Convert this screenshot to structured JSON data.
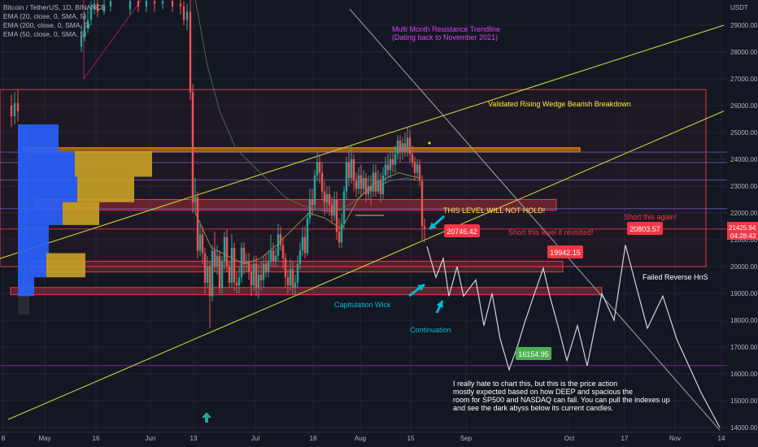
{
  "header": {
    "symbol_line": "Bitcoin / TetherUS, 1D, BINANCE",
    "indicators": [
      "EMA (20, close, 0, SMA, 5)",
      "EMA (200, close, 0, SMA, 5)",
      "EMA (50, close, 0, SMA, 5)"
    ]
  },
  "price_axis": {
    "currency": "USDT",
    "current_price": "21425.94",
    "countdown": "04:28:43"
  },
  "annotations": {
    "resistance_title": "Multi Month Resistance Trendline",
    "resistance_sub": "(Dating back to November 2021)",
    "wedge": "Validated Rising Wedge Bearish Breakdown",
    "not_hold": "THIS LEVEL WILL NOT HOLD!",
    "short_revisit": "Short this level if revisited!",
    "short_again": "Short this again!",
    "failed_hns": "Failed Reverse HnS",
    "cap_wick": "Capitulation Wick",
    "continuation": "Continuation",
    "commentary": [
      "I really hate to chart this, but this is the price action",
      "mostly expected based on how DEEP and spacious the",
      "room for SP500 and NASDAQ can fall. You can pull the indexes up",
      "and see the dark abyss below its current candles."
    ]
  },
  "chart_data": {
    "type": "line",
    "title": "",
    "xlabel": "",
    "ylabel": "",
    "x_ticks": [
      "8",
      "May",
      "16",
      "Jun",
      "13",
      "Jul",
      "18",
      "Aug",
      "15",
      "Sep",
      "Oct",
      "17",
      "Nov",
      "14"
    ],
    "y_ticks": [
      14000,
      15000,
      16000,
      17000,
      18000,
      19000,
      20000,
      21000,
      22000,
      23000,
      24000,
      25000,
      26000,
      27000,
      28000,
      29000
    ],
    "ylim": [
      13800,
      30200
    ],
    "price_labels": [
      {
        "value": "20746.42",
        "color": "#f23645"
      },
      {
        "value": "19942.15",
        "color": "#f23645"
      },
      {
        "value": "20803.57",
        "color": "#f23645"
      },
      {
        "value": "16154.95",
        "color": "#4caf50"
      }
    ],
    "projection_path": [
      [
        525,
        20750
      ],
      [
        536,
        19600
      ],
      [
        545,
        20300
      ],
      [
        552,
        18900
      ],
      [
        562,
        20000
      ],
      [
        570,
        18900
      ],
      [
        585,
        19500
      ],
      [
        595,
        17800
      ],
      [
        605,
        19000
      ],
      [
        615,
        17300
      ],
      [
        626,
        16155
      ],
      [
        636,
        17000
      ],
      [
        645,
        17900
      ],
      [
        655,
        18800
      ],
      [
        668,
        19942
      ],
      [
        676,
        18900
      ],
      [
        686,
        17800
      ],
      [
        697,
        16500
      ],
      [
        710,
        17800
      ],
      [
        722,
        16300
      ],
      [
        740,
        19000
      ],
      [
        755,
        18000
      ],
      [
        769,
        20804
      ],
      [
        782,
        19300
      ],
      [
        796,
        17700
      ],
      [
        815,
        18900
      ],
      [
        832,
        17300
      ],
      [
        862,
        15300
      ],
      [
        885,
        14000
      ]
    ],
    "resistance_trendline": [
      [
        430,
        29600
      ],
      [
        885,
        13900
      ]
    ],
    "wedge_upper": [
      [
        0,
        20300
      ],
      [
        890,
        29000
      ]
    ],
    "wedge_lower": [
      [
        10,
        14300
      ],
      [
        890,
        25800
      ]
    ],
    "zones": [
      {
        "y0": 20000,
        "y1": 26600,
        "x0": 0,
        "x1": 868,
        "fill": "rgba(242,54,69,0.05)",
        "stroke": "#f23645"
      },
      {
        "y0": 24270,
        "y1": 24430,
        "x0": 30,
        "x1": 713,
        "fill": "rgba(255,152,0,0.55)",
        "stroke": "#ff9800"
      },
      {
        "y0": 22100,
        "y1": 22500,
        "x0": 43,
        "x1": 684,
        "fill": "rgba(242,54,69,0.35)",
        "stroke": "#f23645"
      },
      {
        "y0": 19800,
        "y1": 20200,
        "x0": 38,
        "x1": 692,
        "fill": "rgba(242,54,69,0.25)",
        "stroke": "#f23645"
      },
      {
        "y0": 18950,
        "y1": 19220,
        "x0": 13,
        "x1": 740,
        "fill": "rgba(242,54,69,0.35)",
        "stroke": "#f23645"
      }
    ],
    "horizontal_lines": [
      {
        "value": 24270,
        "color": "#7e57c2"
      },
      {
        "value": 23880,
        "color": "#7e57c2"
      },
      {
        "value": 23230,
        "color": "#7e57c2"
      },
      {
        "value": 22160,
        "color": "#7e57c2"
      },
      {
        "value": 21400,
        "color": "#f23645"
      },
      {
        "value": 16310,
        "color": "#9c27b0"
      }
    ],
    "volume_profile": [
      {
        "bottom": 24300,
        "top": 25300,
        "blue": 50,
        "yellow": 0
      },
      {
        "bottom": 23350,
        "top": 24300,
        "blue": 70,
        "yellow": 95
      },
      {
        "bottom": 22400,
        "top": 23350,
        "blue": 73,
        "yellow": 70
      },
      {
        "bottom": 21550,
        "top": 22400,
        "blue": 55,
        "yellow": 45
      },
      {
        "bottom": 20500,
        "top": 21550,
        "blue": 38,
        "yellow": 0
      },
      {
        "bottom": 19600,
        "top": 20500,
        "blue": 35,
        "yellow": 48
      },
      {
        "bottom": 18900,
        "top": 19600,
        "blue": 20,
        "yellow": 0
      }
    ],
    "ema_50": [
      [
        240,
        30000
      ],
      [
        255,
        27500
      ],
      [
        270,
        25800
      ],
      [
        290,
        24400
      ],
      [
        310,
        23800
      ],
      [
        330,
        23200
      ],
      [
        350,
        22600
      ],
      [
        370,
        22300
      ],
      [
        390,
        22100
      ],
      [
        410,
        22050
      ],
      [
        430,
        22300
      ],
      [
        450,
        22800
      ],
      [
        480,
        23200
      ],
      [
        500,
        23300
      ],
      [
        515,
        23200
      ]
    ],
    "ema_20": [
      [
        240,
        22000
      ],
      [
        260,
        20700
      ],
      [
        280,
        20400
      ],
      [
        300,
        20100
      ],
      [
        320,
        20300
      ],
      [
        340,
        20800
      ],
      [
        360,
        21400
      ],
      [
        380,
        22000
      ],
      [
        400,
        21800
      ],
      [
        420,
        21400
      ],
      [
        440,
        22500
      ],
      [
        460,
        23100
      ],
      [
        490,
        23500
      ],
      [
        515,
        23300
      ]
    ],
    "ema_200_pre_may": [
      [
        60,
        28000
      ],
      [
        100,
        27000
      ],
      [
        120,
        28500
      ]
    ],
    "ema_200_upper": [
      [
        250,
        30000
      ],
      [
        240,
        30000
      ]
    ],
    "may_range_line": [
      [
        103,
        27000
      ],
      [
        175,
        30000
      ]
    ],
    "candles": [
      [
        14,
        26000,
        25600,
        26400,
        25200
      ],
      [
        18,
        25600,
        26100,
        26500,
        25300
      ],
      [
        22,
        26100,
        25800,
        26600,
        25400
      ],
      [
        100,
        28200,
        28600,
        29000,
        28000
      ],
      [
        104,
        28600,
        28900,
        29500,
        28400
      ],
      [
        108,
        28900,
        29200,
        29600,
        28700
      ],
      [
        112,
        29200,
        29600,
        29900,
        29000
      ],
      [
        116,
        29600,
        29800,
        30000,
        29400
      ],
      [
        120,
        29800,
        29500,
        30000,
        29300
      ],
      [
        128,
        29500,
        29700,
        30000,
        29400
      ],
      [
        136,
        29700,
        29900,
        30000,
        29500
      ],
      [
        160,
        29600,
        29900,
        30000,
        29400
      ],
      [
        170,
        29900,
        29700,
        30000,
        29500
      ],
      [
        180,
        29700,
        29900,
        30000,
        29500
      ],
      [
        190,
        29900,
        29800,
        30000,
        29500
      ],
      [
        200,
        29800,
        29900,
        30000,
        29600
      ],
      [
        212,
        29900,
        29700,
        30000,
        29500
      ],
      [
        222,
        29800,
        29700,
        30000,
        29400
      ],
      [
        226,
        29700,
        29200,
        29900,
        29000
      ],
      [
        230,
        29200,
        29500,
        29800,
        28800
      ],
      [
        234,
        29500,
        26500,
        30000,
        26200
      ],
      [
        237,
        26500,
        22400,
        26800,
        22000
      ],
      [
        240,
        22400,
        22600,
        23300,
        22000
      ],
      [
        243,
        22600,
        20600,
        22800,
        20300
      ],
      [
        246,
        20600,
        21200,
        21700,
        20400
      ],
      [
        249,
        21200,
        20500,
        21500,
        20100
      ],
      [
        252,
        20500,
        19400,
        20700,
        19000
      ],
      [
        255,
        19400,
        20000,
        20400,
        19200
      ],
      [
        258,
        20000,
        18900,
        20200,
        17700
      ],
      [
        261,
        18900,
        20600,
        20800,
        18700
      ],
      [
        264,
        20600,
        20000,
        21300,
        19800
      ],
      [
        267,
        20000,
        20400,
        20800,
        19700
      ],
      [
        270,
        20400,
        19200,
        20600,
        19000
      ],
      [
        273,
        19200,
        20200,
        20400,
        19000
      ],
      [
        276,
        20200,
        21100,
        21300,
        19900
      ],
      [
        279,
        21100,
        20000,
        21400,
        19800
      ],
      [
        282,
        20000,
        19400,
        20200,
        19200
      ],
      [
        285,
        19400,
        20700,
        21200,
        19200
      ],
      [
        288,
        20700,
        19400,
        20900,
        19100
      ],
      [
        291,
        19400,
        19300,
        19800,
        19000
      ],
      [
        294,
        19300,
        19600,
        20000,
        19000
      ],
      [
        297,
        19600,
        20700,
        20900,
        19400
      ],
      [
        300,
        20700,
        20100,
        20900,
        19700
      ],
      [
        303,
        20100,
        20200,
        20500,
        19800
      ],
      [
        306,
        20200,
        19800,
        20500,
        19500
      ],
      [
        309,
        19800,
        19300,
        20100,
        18900
      ],
      [
        312,
        19300,
        20100,
        20400,
        19100
      ],
      [
        315,
        20100,
        19200,
        20400,
        18900
      ],
      [
        318,
        19200,
        19700,
        20100,
        18800
      ],
      [
        321,
        19700,
        19500,
        20200,
        19100
      ],
      [
        324,
        19500,
        20100,
        20400,
        19200
      ],
      [
        327,
        20100,
        19800,
        20500,
        19600
      ],
      [
        330,
        19800,
        20200,
        20600,
        19600
      ],
      [
        333,
        20200,
        20600,
        21200,
        20000
      ],
      [
        336,
        20600,
        20200,
        20900,
        20000
      ],
      [
        339,
        20200,
        20400,
        20700,
        20000
      ],
      [
        342,
        20400,
        21200,
        21600,
        20200
      ],
      [
        345,
        21200,
        20800,
        21500,
        20600
      ],
      [
        348,
        20800,
        20300,
        21100,
        19900
      ],
      [
        351,
        20300,
        19600,
        20500,
        19200
      ],
      [
        354,
        19600,
        19300,
        19900,
        19000
      ],
      [
        357,
        19300,
        19900,
        20300,
        19100
      ],
      [
        360,
        19900,
        19200,
        20200,
        18950
      ],
      [
        363,
        19200,
        19400,
        19700,
        18900
      ],
      [
        366,
        19400,
        20100,
        20400,
        19200
      ],
      [
        369,
        20100,
        20600,
        20900,
        19900
      ],
      [
        372,
        20600,
        21100,
        21500,
        20400
      ],
      [
        375,
        21100,
        20500,
        21500,
        20300
      ],
      [
        378,
        20500,
        21800,
        22000,
        20400
      ],
      [
        381,
        21800,
        22500,
        22900,
        21600
      ],
      [
        384,
        22500,
        22300,
        22900,
        21900
      ],
      [
        387,
        22300,
        23400,
        23600,
        22100
      ],
      [
        390,
        23400,
        23900,
        24300,
        23200
      ],
      [
        393,
        23900,
        23500,
        24200,
        23100
      ],
      [
        396,
        23500,
        22800,
        23900,
        22500
      ],
      [
        399,
        22800,
        22400,
        23200,
        21900
      ],
      [
        402,
        22400,
        22700,
        23000,
        22000
      ],
      [
        405,
        22700,
        22300,
        23000,
        21900
      ],
      [
        408,
        22300,
        21900,
        22600,
        21600
      ],
      [
        411,
        21900,
        22500,
        22800,
        21700
      ],
      [
        414,
        22500,
        21300,
        22800,
        21000
      ],
      [
        417,
        21300,
        20900,
        21800,
        20700
      ],
      [
        420,
        20900,
        21600,
        22000,
        20700
      ],
      [
        423,
        21600,
        22800,
        23000,
        21400
      ],
      [
        426,
        22800,
        23900,
        24100,
        22500
      ],
      [
        429,
        23900,
        23300,
        24300,
        23000
      ],
      [
        432,
        23300,
        24000,
        24500,
        23100
      ],
      [
        435,
        24000,
        23200,
        24200,
        22800
      ],
      [
        438,
        23200,
        22900,
        23500,
        22600
      ],
      [
        441,
        22900,
        23400,
        23700,
        22700
      ],
      [
        444,
        23400,
        22900,
        23800,
        22600
      ],
      [
        447,
        22900,
        23300,
        23600,
        22700
      ],
      [
        450,
        23300,
        22700,
        23500,
        22400
      ],
      [
        453,
        22700,
        23000,
        23400,
        22500
      ],
      [
        456,
        23000,
        22800,
        23400,
        22300
      ],
      [
        459,
        22800,
        23500,
        23800,
        22600
      ],
      [
        462,
        23500,
        22800,
        23800,
        22600
      ],
      [
        465,
        22800,
        23200,
        23600,
        22700
      ],
      [
        468,
        23200,
        22700,
        23500,
        22400
      ],
      [
        471,
        22700,
        23400,
        23700,
        22500
      ],
      [
        474,
        23400,
        23800,
        24100,
        23100
      ],
      [
        477,
        23800,
        23600,
        24200,
        23300
      ],
      [
        480,
        23600,
        24000,
        24300,
        23300
      ],
      [
        483,
        24000,
        23800,
        24300,
        23500
      ],
      [
        486,
        23800,
        24200,
        24500,
        23500
      ],
      [
        489,
        24200,
        24700,
        24900,
        24000
      ],
      [
        492,
        24700,
        24300,
        24900,
        23900
      ],
      [
        495,
        24300,
        24600,
        24800,
        24000
      ],
      [
        498,
        24600,
        24300,
        25000,
        24100
      ],
      [
        501,
        24300,
        24800,
        25200,
        24100
      ],
      [
        504,
        24800,
        24200,
        25100,
        23900
      ],
      [
        507,
        24200,
        23900,
        24500,
        23700
      ],
      [
        510,
        23900,
        23500,
        24100,
        23200
      ],
      [
        513,
        23500,
        23800,
        24000,
        23300
      ],
      [
        516,
        23800,
        23200,
        24000,
        23000
      ],
      [
        519,
        23200,
        21500,
        23400,
        21000
      ],
      [
        522,
        21500,
        21400,
        21800,
        20900
      ]
    ]
  }
}
